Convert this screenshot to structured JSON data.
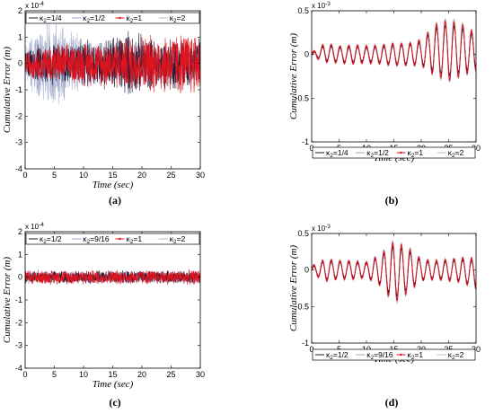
{
  "chart_data": [
    {
      "id": "a",
      "type": "line",
      "caption": "(a)",
      "xlabel": "Time (sec)",
      "ylabel": "Cumulative Error (m)",
      "exponent": "x 10",
      "exponent_power": "-4",
      "xlim": [
        0,
        30
      ],
      "ylim": [
        -4,
        2
      ],
      "xticks": [
        0,
        5,
        10,
        15,
        20,
        25,
        30
      ],
      "yticks": [
        -4,
        -3,
        -2,
        -1,
        0,
        1,
        2
      ],
      "ytick_labels": [
        "-4",
        "-3",
        "-2",
        "-1",
        "0",
        "1",
        "2"
      ],
      "legend_position": "top",
      "series": [
        {
          "name": "κ2=1/4",
          "color": "#1a1a3a",
          "amplitude": [
            0.6,
            0.8,
            0.9,
            0.8,
            1.0,
            1.0,
            1.2,
            1.4,
            1.2,
            1.0,
            1.1,
            1.0,
            1.1
          ]
        },
        {
          "name": "κ2=1/2",
          "color": "#9aa3c8",
          "amplitude": [
            0.8,
            1.6,
            2.0,
            1.4,
            1.1,
            0.9,
            0.8,
            0.7,
            0.8,
            0.7,
            0.8,
            0.8,
            0.8
          ]
        },
        {
          "name": "κ2=1",
          "color": "#e0141e",
          "amplitude": [
            0.5,
            0.7,
            0.8,
            0.8,
            0.9,
            0.9,
            1.0,
            1.1,
            1.2,
            1.2,
            1.3,
            1.3,
            1.4
          ]
        },
        {
          "name": "κ2=2",
          "color": "#bdbdbd",
          "amplitude": [
            0.3,
            0.4,
            0.4,
            0.4,
            0.5,
            0.5,
            0.5,
            0.5,
            0.5,
            0.5,
            0.5,
            0.5,
            0.5
          ]
        }
      ],
      "envelope_times": [
        0,
        2.5,
        5,
        7.5,
        10,
        12.5,
        15,
        17.5,
        20,
        22.5,
        25,
        27.5,
        30
      ]
    },
    {
      "id": "b",
      "type": "line",
      "caption": "(b)",
      "xlabel": "Time (sec)",
      "ylabel": "Cumulative Error (m)",
      "exponent": "x 10",
      "exponent_power": "-3",
      "xlim": [
        0,
        30
      ],
      "ylim": [
        -1,
        0.5
      ],
      "xticks": [
        0,
        5,
        10,
        15,
        20,
        25,
        30
      ],
      "yticks": [
        -1,
        -0.5,
        0,
        0.5
      ],
      "ytick_labels": [
        "-1",
        "-0.5",
        "0",
        "0.5"
      ],
      "legend_position": "bottom",
      "series": [
        {
          "name": "κ2=1/4",
          "color": "#1a1a3a"
        },
        {
          "name": "κ2=1/2",
          "color": "#9aa3c8"
        },
        {
          "name": "κ2=1",
          "color": "#e0141e"
        },
        {
          "name": "κ2=2",
          "color": "#bdbdbd"
        }
      ],
      "oscillation_period": 1.6,
      "envelope_times": [
        0,
        2.5,
        5,
        7.5,
        10,
        12.5,
        15,
        17.5,
        20,
        22.5,
        25,
        27.5,
        30
      ],
      "envelope": [
        0.02,
        0.1,
        0.09,
        0.1,
        0.09,
        0.1,
        0.12,
        0.12,
        0.14,
        0.28,
        0.33,
        0.28,
        0.2
      ],
      "offset": [
        0,
        0.02,
        0.0,
        0.0,
        0.0,
        0.0,
        0.0,
        0.0,
        0.02,
        0.05,
        0.05,
        0.05,
        0.03
      ]
    },
    {
      "id": "c",
      "type": "line",
      "caption": "(c)",
      "xlabel": "Time (sec)",
      "ylabel": "Cumulative Error (m)",
      "exponent": "x 10",
      "exponent_power": "-4",
      "xlim": [
        0,
        30
      ],
      "ylim": [
        -4,
        2
      ],
      "xticks": [
        0,
        5,
        10,
        15,
        20,
        25,
        30
      ],
      "yticks": [
        -4,
        -3,
        -2,
        -1,
        0,
        1,
        2
      ],
      "ytick_labels": [
        "-4",
        "-3",
        "-2",
        "-1",
        "0",
        "1",
        "2"
      ],
      "legend_position": "top",
      "series": [
        {
          "name": "κ2=1/2",
          "color": "#1a1a3a",
          "amplitude": 0.3
        },
        {
          "name": "κ2=9/16",
          "color": "#9aa3c8",
          "amplitude": 0.3
        },
        {
          "name": "κ2=1",
          "color": "#e0141e",
          "amplitude": 0.35
        },
        {
          "name": "κ2=2",
          "color": "#bdbdbd",
          "amplitude": 0.25
        }
      ]
    },
    {
      "id": "d",
      "type": "line",
      "caption": "(d)",
      "xlabel": "Time (sec)",
      "ylabel": "Cumulative Error (m)",
      "exponent": "x 10",
      "exponent_power": "-3",
      "xlim": [
        0,
        30
      ],
      "ylim": [
        -1,
        0.5
      ],
      "xticks": [
        0,
        5,
        10,
        15,
        20,
        25,
        30
      ],
      "yticks": [
        -1,
        -0.5,
        0,
        0.5
      ],
      "ytick_labels": [
        "-1",
        "-0.5",
        "0",
        "0.5"
      ],
      "legend_position": "bottom",
      "series": [
        {
          "name": "κ2=1/2",
          "color": "#1a1a3a"
        },
        {
          "name": "κ2=9/16",
          "color": "#9aa3c8"
        },
        {
          "name": "κ2=1",
          "color": "#e0141e"
        },
        {
          "name": "κ2=2",
          "color": "#bdbdbd"
        }
      ],
      "oscillation_period": 1.6,
      "envelope_times": [
        0,
        2.5,
        5,
        7.5,
        10,
        12.5,
        15,
        17.5,
        20,
        22.5,
        25,
        27.5,
        30
      ],
      "envelope": [
        0.05,
        0.14,
        0.12,
        0.12,
        0.1,
        0.2,
        0.4,
        0.3,
        0.14,
        0.12,
        0.14,
        0.16,
        0.2
      ],
      "offset": [
        0,
        0.0,
        0.0,
        0.0,
        0.0,
        0.0,
        -0.03,
        0.0,
        0.0,
        0.0,
        0.0,
        0.0,
        -0.05
      ]
    }
  ]
}
